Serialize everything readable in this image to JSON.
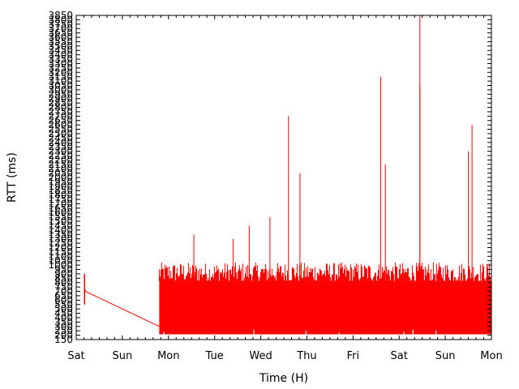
{
  "chart_data": {
    "type": "line",
    "title": "",
    "xlabel": "Time (H)",
    "ylabel": "RTT (ms)",
    "x_tick_labels": [
      "Sat",
      "Sun",
      "Mon",
      "Tue",
      "Wed",
      "Thu",
      "Fri",
      "Sat",
      "Sun",
      "Mon"
    ],
    "y_ticks": [
      150,
      200,
      250,
      300,
      350,
      400,
      450,
      500,
      550,
      600,
      650,
      700,
      750,
      800,
      850,
      900,
      950,
      1000,
      1050,
      1100,
      1150,
      1200,
      1250,
      1300,
      1350,
      1400,
      1450,
      1500,
      1550,
      1600,
      1650,
      1700,
      1750,
      1800,
      1850,
      1900,
      1950,
      2000,
      2050,
      2100,
      2150,
      2200,
      2250,
      2300,
      2350,
      2400,
      2450,
      2500,
      2550,
      2600,
      2650,
      2700,
      2750,
      2800,
      2850,
      2900,
      2950,
      3000,
      3050,
      3100,
      3150,
      3200,
      3250,
      3300,
      3350,
      3400,
      3450,
      3500,
      3550,
      3600,
      3650,
      3700,
      3750,
      3800,
      3850
    ],
    "ylim": [
      150,
      3850
    ],
    "xlim_days": [
      0,
      9
    ],
    "series_color": "#ff0000",
    "typical_range_ms": [
      200,
      1000
    ],
    "segments": [
      {
        "x": [
          0.18,
          0.2,
          1.8
        ],
        "y": [
          750,
          700,
          300
        ]
      }
    ],
    "dense_band": {
      "x_start": 1.8,
      "x_end": 9.0,
      "y_min": 210,
      "y_max": 950
    },
    "spikes": [
      {
        "x": 2.55,
        "y": 1350
      },
      {
        "x": 3.4,
        "y": 1300
      },
      {
        "x": 3.75,
        "y": 1450
      },
      {
        "x": 4.2,
        "y": 1550
      },
      {
        "x": 4.6,
        "y": 2700
      },
      {
        "x": 4.85,
        "y": 2050
      },
      {
        "x": 6.6,
        "y": 3150
      },
      {
        "x": 6.7,
        "y": 2150
      },
      {
        "x": 7.45,
        "y": 3850
      },
      {
        "x": 7.45,
        "y": 3050
      },
      {
        "x": 8.5,
        "y": 2300
      },
      {
        "x": 8.58,
        "y": 2600
      }
    ],
    "grid": false,
    "legend": "none"
  }
}
